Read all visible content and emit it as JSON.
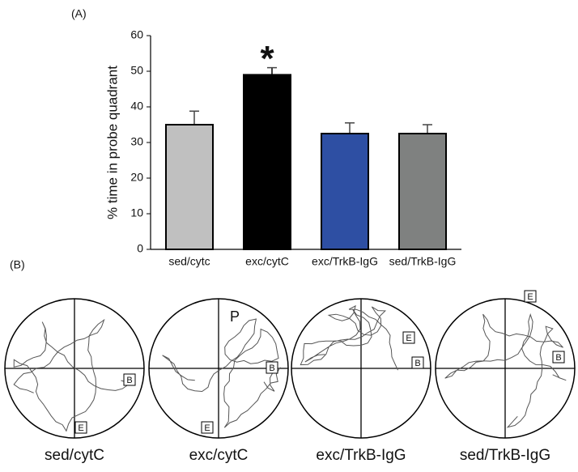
{
  "panel_a_label": "(A)",
  "chart_data": {
    "type": "bar",
    "y_label": "% time in probe quadrant",
    "categories": [
      "sed/cytc",
      "exc/cytC",
      "exc/TrkB-IgG",
      "sed/TrkB-IgG"
    ],
    "values": [
      35,
      49,
      32.5,
      32.5
    ],
    "errors": [
      3.8,
      2,
      3,
      2.5
    ],
    "colors": [
      "#c0c0c0",
      "#000000",
      "#2e4fa3",
      "#7f8180"
    ],
    "annotation": {
      "text": "*",
      "category_index": 1
    },
    "ylim": [
      0,
      60
    ],
    "yticks": [
      0,
      10,
      20,
      30,
      40,
      50,
      60
    ],
    "grid": false
  },
  "panel_b": {
    "label": "(B)",
    "plots": [
      {
        "caption": "sed/cytC",
        "markers": [
          "B",
          "E"
        ]
      },
      {
        "caption": "exc/cytC",
        "markers": [
          "P",
          "B",
          "E"
        ]
      },
      {
        "caption": "exc/TrkB-IgG",
        "markers": [
          "E",
          "B"
        ]
      },
      {
        "caption": "sed/TrkB-IgG",
        "markers": [
          "E",
          "B"
        ]
      }
    ]
  }
}
